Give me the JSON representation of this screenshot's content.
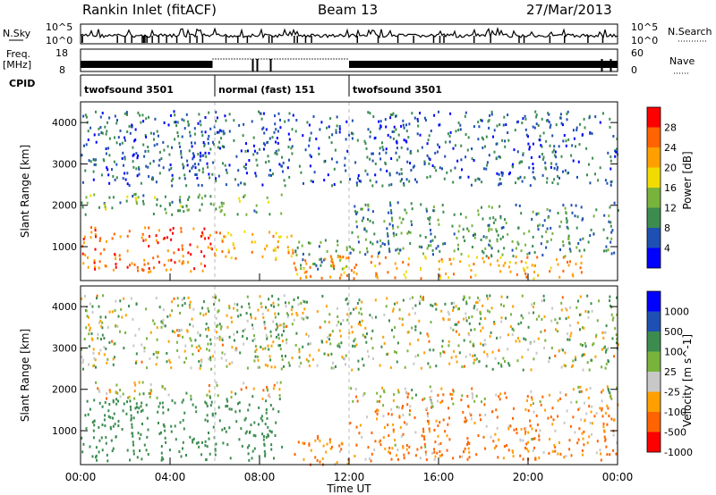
{
  "header": {
    "station": "Rankin Inlet (fitACF)",
    "beam": "Beam 13",
    "date": "27/Mar/2013"
  },
  "noise_panel": {
    "left_label": "N.Sky",
    "right_label": "N.Search",
    "left_ticks": [
      "10^5",
      "10^0"
    ],
    "right_ticks": [
      "10^5",
      "10^0"
    ]
  },
  "freq_panel": {
    "left_label": "Freq.",
    "left_unit": "[MHz]",
    "right_label": "Nave",
    "left_ticks": [
      "18",
      "8"
    ],
    "right_ticks": [
      "60",
      "0"
    ]
  },
  "cpid": {
    "label": "CPID",
    "segments": [
      {
        "label": "twofsound 3501",
        "start_h": 0,
        "end_h": 6
      },
      {
        "label": "normal (fast) 151",
        "start_h": 6,
        "end_h": 12
      },
      {
        "label": "twofsound 3501",
        "start_h": 12,
        "end_h": 24
      }
    ]
  },
  "time_axis": {
    "label": "Time UT",
    "ticks": [
      "00:00",
      "04:00",
      "08:00",
      "12:00",
      "16:00",
      "20:00",
      "00:00"
    ],
    "range_h": [
      0,
      24
    ]
  },
  "range_axis": {
    "label": "Slant Range [km]",
    "ticks": [
      1000,
      2000,
      3000,
      4000
    ],
    "range_km": [
      180,
      4500
    ]
  },
  "chart_data": [
    {
      "type": "heatmap",
      "title": "",
      "xlabel": "Time UT",
      "ylabel": "Slant Range [km]",
      "colorbar_label": "Power [dB]",
      "colorbar_ticks": [
        4,
        8,
        12,
        16,
        20,
        24,
        28
      ],
      "colorbar_range": [
        0,
        32
      ],
      "colors": [
        "#0000ff",
        "#1e50b4",
        "#3c8c50",
        "#78b43c",
        "#f0dc00",
        "#ffa000",
        "#ff6400",
        "#ff0000"
      ],
      "ylim": [
        180,
        4500
      ],
      "xlim": [
        0,
        24
      ],
      "regions": [
        {
          "t": [
            0,
            5.9
          ],
          "r": [
            400,
            1500
          ],
          "value": 26
        },
        {
          "t": [
            5.9,
            9.5
          ],
          "r": [
            700,
            1400
          ],
          "value": 22
        },
        {
          "t": [
            0,
            9
          ],
          "r": [
            1800,
            2300
          ],
          "value": 12
        },
        {
          "t": [
            9.5,
            12
          ],
          "r": [
            400,
            1200
          ],
          "value": 10
        },
        {
          "t": [
            9.5,
            22.5
          ],
          "r": [
            250,
            800
          ],
          "value": 23
        },
        {
          "t": [
            12,
            24
          ],
          "r": [
            800,
            2100
          ],
          "value": 10
        },
        {
          "t": [
            0,
            24
          ],
          "r": [
            2500,
            4300
          ],
          "value": 7
        }
      ]
    },
    {
      "type": "heatmap",
      "title": "",
      "xlabel": "Time UT",
      "ylabel": "Slant Range [km]",
      "colorbar_label": "Velocity [m s^-1]",
      "colorbar_ticks": [
        1000,
        500,
        100,
        25,
        -25,
        -100,
        -500,
        -1000
      ],
      "colors": [
        "#0000ff",
        "#1e50b4",
        "#3c8c50",
        "#78b43c",
        "#c8c8c8",
        "#ffa000",
        "#ff6400",
        "#ff0000"
      ],
      "ylim": [
        180,
        4500
      ],
      "xlim": [
        0,
        24
      ],
      "regions": [
        {
          "t": [
            0,
            9
          ],
          "r": [
            300,
            1800
          ],
          "value": 300
        },
        {
          "t": [
            0,
            9
          ],
          "r": [
            1800,
            2200
          ],
          "value": 0
        },
        {
          "t": [
            9.5,
            12
          ],
          "r": [
            200,
            900
          ],
          "value": -150
        },
        {
          "t": [
            12,
            24
          ],
          "r": [
            300,
            1600
          ],
          "value": -120
        },
        {
          "t": [
            12,
            24
          ],
          "r": [
            1600,
            2100
          ],
          "value": -40
        },
        {
          "t": [
            0,
            24
          ],
          "r": [
            2500,
            4300
          ],
          "value": 40
        }
      ]
    }
  ]
}
